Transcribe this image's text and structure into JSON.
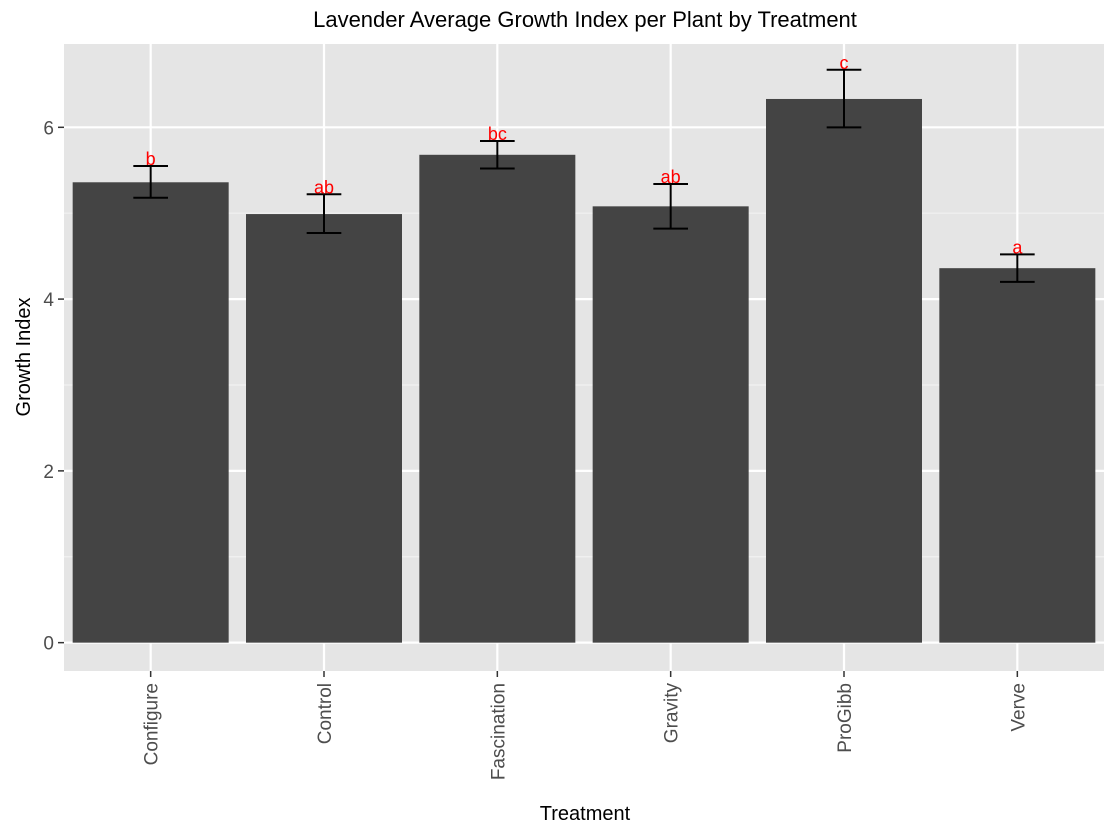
{
  "colors": {
    "panel": "#e5e5e5",
    "grid_major": "#ffffff",
    "grid_minor": "#f2f2f2",
    "bar": "#444444",
    "error_bar": "#000000",
    "significance": "#ff0000",
    "tick": "#333333"
  },
  "chart_data": {
    "type": "bar",
    "title": "Lavender Average Growth Index per Plant by Treatment",
    "xlabel": "Treatment",
    "ylabel": "Growth Index",
    "categories": [
      "Configure",
      "Control",
      "Fascination",
      "Gravity",
      "ProGibb",
      "Verve"
    ],
    "values": [
      5.36,
      4.99,
      5.68,
      5.08,
      6.33,
      4.36
    ],
    "error_low": [
      5.18,
      4.77,
      5.52,
      4.82,
      6.0,
      4.2
    ],
    "error_high": [
      5.55,
      5.22,
      5.84,
      5.34,
      6.67,
      4.52
    ],
    "significance_labels": [
      "b",
      "ab",
      "bc",
      "ab",
      "c",
      "a"
    ],
    "yticks": [
      0,
      2,
      4,
      6
    ],
    "ylim": [
      -0.33,
      6.97
    ],
    "grid": true,
    "legend": "none"
  }
}
